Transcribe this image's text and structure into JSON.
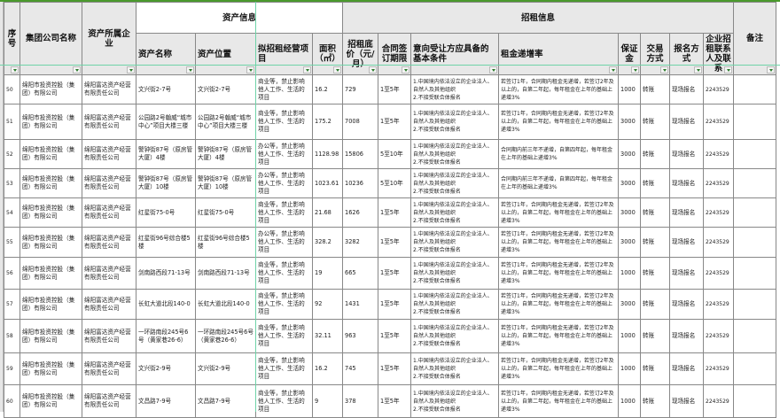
{
  "header": {
    "group_asset": "资产信息",
    "group_lease": "招租信息",
    "columns": [
      "序号",
      "集团公司名称",
      "资产所属企业",
      "资产名称",
      "资产位置",
      "拟招租经营项目",
      "面积（㎡）",
      "招租底价（元/月）",
      "合同签订期限",
      "意向受让方应具备的基本条件",
      "租金递增率",
      "保证金",
      "交易方式",
      "报名方式",
      "企业招租联系人及联系",
      "备注"
    ]
  },
  "rows": [
    {
      "no": "50",
      "group": "绵阳市投资控股（集团）有限公司",
      "company": "绵阳富达资产经营有限责任公司",
      "name": "文兴街2-7号",
      "location": "文兴街2-7号",
      "use": "商业等，禁止影响他人工作、生活的项目",
      "area": "16.2",
      "price": "729",
      "term": "1至5年",
      "cond": "1.中国境内依法设立的企业法人、自然人及其他组织\n2.不接受联合体报名",
      "rate": "若签订1年，合同期内租金无递增，若签订2年及以上的，自第二年起，每年租金在上年的基础上递增3%",
      "deposit": "1000",
      "trade": "转账",
      "signup": "现场报名",
      "contact": "2243529",
      "note": ""
    },
    {
      "no": "51",
      "group": "绵阳市投资控股（集团）有限公司",
      "company": "绵阳富达资产经营有限责任公司",
      "name": "公园路2号翰威“城市中心”项目大楼三楼",
      "location": "公园路2号翰威“城市中心”项目大楼三楼",
      "use": "商业等，禁止影响他人工作、生活的项目",
      "area": "175.2",
      "price": "7008",
      "term": "1至5年",
      "cond": "1.中国境内依法设立的企业法人、自然人及其他组织\n2.不接受联合体报名",
      "rate": "若签订1年，合同期内租金无递增，若签订2年及以上的，自第二年起，每年租金在上年的基础上递增3%",
      "deposit": "3000",
      "trade": "转账",
      "signup": "现场报名",
      "contact": "2243529",
      "note": ""
    },
    {
      "no": "52",
      "group": "绵阳市投资控股（集团）有限公司",
      "company": "绵阳富达资产经营有限责任公司",
      "name": "警钟街87号（原房管大厦）4楼",
      "location": "警钟街87号（原房管大厦）4楼",
      "use": "办公等，禁止影响他人工作、生活的项目",
      "area": "1128.98",
      "price": "15806",
      "term": "5至10年",
      "cond": "1.中国境内依法设立的企业法人、自然人及其他组织\n2.不接受联合体报名",
      "rate": "合同期内前三年不递增，自第四年起，每年租金在上年的基础上递增3%",
      "deposit": "3000",
      "trade": "转账",
      "signup": "现场报名",
      "contact": "2243529",
      "note": ""
    },
    {
      "no": "53",
      "group": "绵阳市投资控股（集团）有限公司",
      "company": "绵阳富达资产经营有限责任公司",
      "name": "警钟街87号（原房管大厦）10楼",
      "location": "警钟街87号（原房管大厦）10楼",
      "use": "办公等，禁止影响他人工作、生活的项目",
      "area": "1023.61",
      "price": "10236",
      "term": "5至10年",
      "cond": "1.中国境内依法设立的企业法人、自然人及其他组织\n2.不接受联合体报名",
      "rate": "合同期内前三年不递增，自第四年起，每年租金在上年的基础上递增3%",
      "deposit": "3000",
      "trade": "转账",
      "signup": "现场报名",
      "contact": "2243529",
      "note": ""
    },
    {
      "no": "54",
      "group": "绵阳市投资控股（集团）有限公司",
      "company": "绵阳富达资产经营有限责任公司",
      "name": "红星街75-0号",
      "location": "红星街75-0号",
      "use": "商业等，禁止影响他人工作、生活的项目",
      "area": "21.68",
      "price": "1626",
      "term": "1至5年",
      "cond": "1.中国境内依法设立的企业法人、自然人及其他组织\n2.不接受联合体报名",
      "rate": "若签订1年，合同期内租金无递增，若签订2年及以上的，自第二年起，每年租金在上年的基础上递增3%",
      "deposit": "3000",
      "trade": "转账",
      "signup": "现场报名",
      "contact": "2243529",
      "note": ""
    },
    {
      "no": "55",
      "group": "绵阳市投资控股（集团）有限公司",
      "company": "绵阳富达资产经营有限责任公司",
      "name": "红星街96号综合楼5楼",
      "location": "红星街96号综合楼5楼",
      "use": "办公等，禁止影响他人工作、生活的项目",
      "area": "328.2",
      "price": "3282",
      "term": "1至5年",
      "cond": "1.中国境内依法设立的企业法人、自然人及其他组织\n2.不接受联合体报名",
      "rate": "若签订1年，合同期内租金无递增，若签订2年及以上的，自第二年起，每年租金在上年的基础上递增3%",
      "deposit": "3000",
      "trade": "转账",
      "signup": "现场报名",
      "contact": "2243529",
      "note": ""
    },
    {
      "no": "56",
      "group": "绵阳市投资控股（集团）有限公司",
      "company": "绵阳富达资产经营有限责任公司",
      "name": "剑南路西段71-13号",
      "location": "剑南路西段71-13号",
      "use": "商业等，禁止影响他人工作、生活的项目",
      "area": "19",
      "price": "665",
      "term": "1至5年",
      "cond": "1.中国境内依法设立的企业法人、自然人及其他组织\n2.不接受联合体报名",
      "rate": "若签订1年，合同期内租金无递增，若签订2年及以上的，自第二年起，每年租金在上年的基础上递增3%",
      "deposit": "1000",
      "trade": "转账",
      "signup": "现场报名",
      "contact": "2243529",
      "note": ""
    },
    {
      "no": "57",
      "group": "绵阳市投资控股（集团）有限公司",
      "company": "绵阳富达资产经营有限责任公司",
      "name": "长虹大道北段140-0",
      "location": "长虹大道北段140-0",
      "use": "商业等，禁止影响他人工作、生活的项目",
      "area": "92",
      "price": "1431",
      "term": "1至5年",
      "cond": "1.中国境内依法设立的企业法人、自然人及其他组织\n2.不接受联合体报名",
      "rate": "若签订1年，合同期内租金无递增，若签订2年及以上的，自第二年起，每年租金在上年的基础上递增3%",
      "deposit": "3000",
      "trade": "转账",
      "signup": "现场报名",
      "contact": "2243529",
      "note": ""
    },
    {
      "no": "58",
      "group": "绵阳市投资控股（集团）有限公司",
      "company": "绵阳富达资产经营有限责任公司",
      "name": "一环路南段245号6号（黄家巷26-6）",
      "location": "一环路南段245号6号（黄家巷26-6）",
      "use": "商业等，禁止影响他人工作、生活的项目",
      "area": "32.11",
      "price": "963",
      "term": "1至5年",
      "cond": "1.中国境内依法设立的企业法人、自然人及其他组织\n2.不接受联合体报名",
      "rate": "若签订1年，合同期内租金无递增，若签订2年及以上的，自第二年起，每年租金在上年的基础上递增3%",
      "deposit": "1000",
      "trade": "转账",
      "signup": "现场报名",
      "contact": "2243529",
      "note": ""
    },
    {
      "no": "59",
      "group": "绵阳市投资控股（集团）有限公司",
      "company": "绵阳富达资产经营有限责任公司",
      "name": "文兴街2-9号",
      "location": "文兴街2-9号",
      "use": "商业等，禁止影响他人工作、生活的项目",
      "area": "16.2",
      "price": "745",
      "term": "1至5年",
      "cond": "1.中国境内依法设立的企业法人、自然人及其他组织\n2.不接受联合体报名",
      "rate": "若签订1年，合同期内租金无递增，若签订2年及以上的，自第二年起，每年租金在上年的基础上递增3%",
      "deposit": "1000",
      "trade": "转账",
      "signup": "现场报名",
      "contact": "2243529",
      "note": ""
    },
    {
      "no": "60",
      "group": "绵阳市投资控股（集团）有限公司",
      "company": "绵阳富达资产经营有限责任公司",
      "name": "文昌路7-9号",
      "location": "文昌路7-9号",
      "use": "商业等，禁止影响他人工作、生活的项目",
      "area": "9",
      "price": "378",
      "term": "1至5年",
      "cond": "1.中国境内依法设立的企业法人、自然人及其他组织\n2.不接受联合体报名",
      "rate": "若签订1年，合同期内租金无递增，若签订2年及以上的，自第二年起，每年租金在上年的基础上递增3%",
      "deposit": "1000",
      "trade": "转账",
      "signup": "现场报名",
      "contact": "2243529",
      "note": ""
    }
  ]
}
